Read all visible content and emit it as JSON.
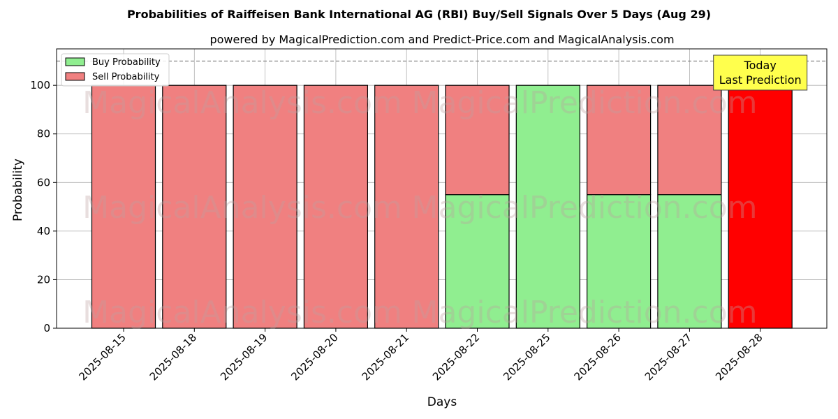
{
  "chart_data": {
    "type": "bar",
    "title": "Probabilities of Raiffeisen Bank International AG (RBI) Buy/Sell Signals Over 5 Days (Aug 29)",
    "subtitle": "powered by MagicalPrediction.com and Predict-Price.com and MagicalAnalysis.com",
    "xlabel": "Days",
    "ylabel": "Probability",
    "categories": [
      "2025-08-15",
      "2025-08-18",
      "2025-08-19",
      "2025-08-20",
      "2025-08-21",
      "2025-08-22",
      "2025-08-25",
      "2025-08-26",
      "2025-08-27",
      "2025-08-28"
    ],
    "series": [
      {
        "name": "Buy Probability",
        "values": [
          0,
          0,
          0,
          0,
          0,
          55,
          100,
          55,
          55,
          0
        ],
        "color": "#90ee90"
      },
      {
        "name": "Sell Probability",
        "values": [
          100,
          100,
          100,
          100,
          100,
          45,
          0,
          45,
          45,
          100
        ],
        "color": "#f08080"
      }
    ],
    "highlight": {
      "category": "2025-08-28",
      "color": "#ff0000"
    },
    "ylim": [
      0,
      115
    ],
    "yticks": [
      0,
      20,
      40,
      60,
      80,
      100
    ],
    "reference_line": {
      "y": 110,
      "style": "dashed"
    },
    "annotation": {
      "lines": [
        "Today",
        "Last Prediction"
      ],
      "category": "2025-08-28",
      "background": "#ffff4d"
    },
    "watermarks": [
      "MagicalAnalysis.com",
      "MagicalPrediction.com"
    ],
    "grid": true,
    "legend_position": "top-left"
  }
}
